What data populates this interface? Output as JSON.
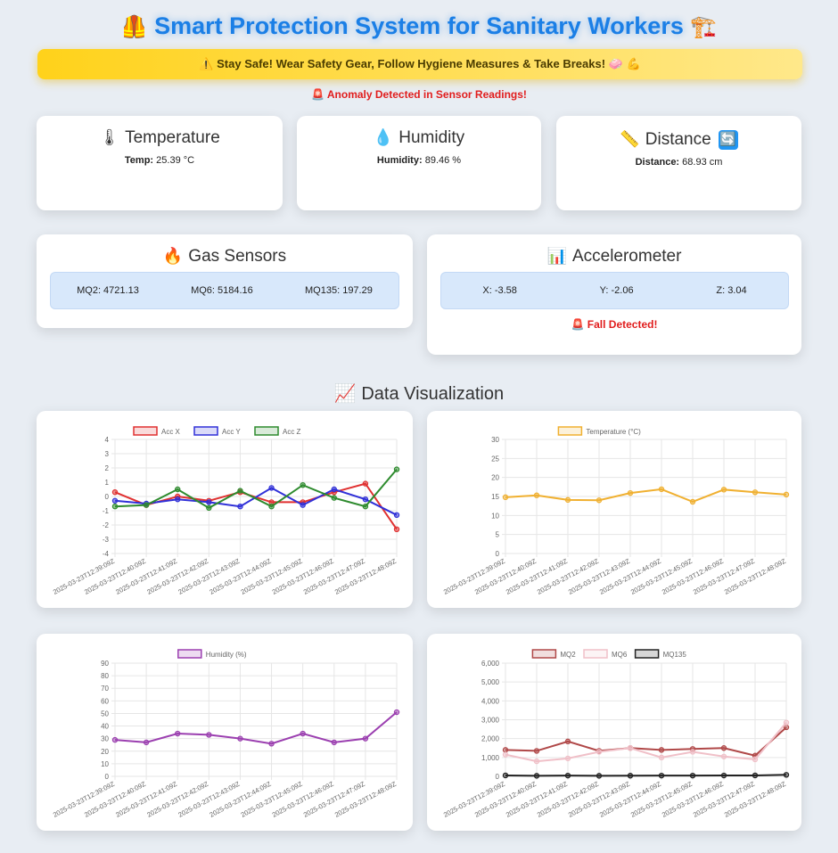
{
  "header": {
    "title": "Smart Protection System for Sanitary Workers",
    "title_left_emoji": "🦺",
    "title_right_emoji": "🏗️",
    "banner": "⚠️ Stay Safe! Wear Safety Gear, Follow Hygiene Measures & Take Breaks! 🧼 💪",
    "anomaly": "🚨 Anomaly Detected in Sensor Readings!"
  },
  "temperature": {
    "title": "Temperature",
    "icon": "🌡",
    "label": "Temp:",
    "value": "25.39 °C"
  },
  "humidity": {
    "title": "Humidity",
    "icon": "💧",
    "label": "Humidity:",
    "value": "89.46 %"
  },
  "distance": {
    "title": "Distance",
    "icon": "📏",
    "label": "Distance:",
    "value": "68.93 cm",
    "refresh_icon": "🔄"
  },
  "gas": {
    "title": "Gas Sensors",
    "icon": "🔥",
    "mq2": "MQ2: 4721.13",
    "mq6": "MQ6: 5184.16",
    "mq135": "MQ135: 197.29"
  },
  "accel": {
    "title": "Accelerometer",
    "icon": "📊",
    "x": "X: -3.58",
    "y": "Y: -2.06",
    "z": "Z: 3.04",
    "fall": "🚨 Fall Detected!"
  },
  "viz": {
    "title": "Data Visualization",
    "icon": "📈"
  },
  "colors": {
    "accent": "#1b7fe6",
    "alert": "#e11d1d",
    "banner": "#ffd21a"
  },
  "chart_data": [
    {
      "type": "line",
      "categories": [
        "2025-03-23T12:39:09Z",
        "2025-03-23T12:40:09Z",
        "2025-03-23T12:41:09Z",
        "2025-03-23T12:42:09Z",
        "2025-03-23T12:43:09Z",
        "2025-03-23T12:44:09Z",
        "2025-03-23T12:45:09Z",
        "2025-03-23T12:46:09Z",
        "2025-03-23T12:47:09Z",
        "2025-03-23T12:48:09Z"
      ],
      "series": [
        {
          "name": "Acc X",
          "color": "#e03030",
          "values": [
            0.3,
            -0.6,
            0.0,
            -0.3,
            0.3,
            -0.4,
            -0.4,
            0.3,
            0.9,
            -2.3
          ]
        },
        {
          "name": "Acc Y",
          "color": "#3030d8",
          "values": [
            -0.3,
            -0.5,
            -0.2,
            -0.4,
            -0.7,
            0.6,
            -0.6,
            0.5,
            -0.2,
            -1.3
          ]
        },
        {
          "name": "Acc Z",
          "color": "#2e8b2e",
          "values": [
            -0.7,
            -0.6,
            0.5,
            -0.8,
            0.4,
            -0.7,
            0.8,
            -0.1,
            -0.7,
            1.9
          ]
        }
      ],
      "ylim": [
        -4,
        4
      ],
      "yticks": [
        4,
        3,
        2,
        1,
        0,
        -1,
        -2,
        -3,
        -4
      ],
      "ytick_labels": [
        "4",
        "3",
        "2",
        "1",
        "0",
        "-1",
        "-2",
        "-3",
        "-4"
      ],
      "legend": "top",
      "grid": true
    },
    {
      "type": "line",
      "categories": [
        "2025-03-23T12:39:09Z",
        "2025-03-23T12:40:09Z",
        "2025-03-23T12:41:09Z",
        "2025-03-23T12:42:09Z",
        "2025-03-23T12:43:09Z",
        "2025-03-23T12:44:09Z",
        "2025-03-23T12:45:09Z",
        "2025-03-23T12:46:09Z",
        "2025-03-23T12:47:09Z",
        "2025-03-23T12:48:09Z"
      ],
      "series": [
        {
          "name": "Temperature (°C)",
          "color": "#f0b030",
          "values": [
            14.8,
            15.3,
            14.1,
            14.0,
            15.9,
            16.9,
            13.6,
            16.8,
            16.1,
            15.5
          ]
        }
      ],
      "ylim": [
        0,
        30
      ],
      "yticks": [
        30,
        25,
        20,
        15,
        10,
        5,
        0
      ],
      "ytick_labels": [
        "30",
        "25",
        "20",
        "15",
        "10",
        "5",
        "0"
      ],
      "legend": "top",
      "grid": true
    },
    {
      "type": "line",
      "categories": [
        "2025-03-23T12:39:09Z",
        "2025-03-23T12:40:09Z",
        "2025-03-23T12:41:09Z",
        "2025-03-23T12:42:09Z",
        "2025-03-23T12:43:09Z",
        "2025-03-23T12:44:09Z",
        "2025-03-23T12:45:09Z",
        "2025-03-23T12:46:09Z",
        "2025-03-23T12:47:09Z",
        "2025-03-23T12:48:09Z"
      ],
      "series": [
        {
          "name": "Humidity (%)",
          "color": "#9b3fb0",
          "values": [
            29,
            27,
            34,
            33,
            30,
            26,
            34,
            27,
            30,
            51
          ]
        }
      ],
      "ylim": [
        0,
        90
      ],
      "yticks": [
        90,
        80,
        70,
        60,
        50,
        40,
        30,
        20,
        10,
        0
      ],
      "ytick_labels": [
        "90",
        "80",
        "70",
        "60",
        "50",
        "40",
        "30",
        "20",
        "10",
        "0"
      ],
      "legend": "top",
      "grid": true
    },
    {
      "type": "line",
      "categories": [
        "2025-03-23T12:39:09Z",
        "2025-03-23T12:40:09Z",
        "2025-03-23T12:41:09Z",
        "2025-03-23T12:42:09Z",
        "2025-03-23T12:43:09Z",
        "2025-03-23T12:44:09Z",
        "2025-03-23T12:45:09Z",
        "2025-03-23T12:46:09Z",
        "2025-03-23T12:47:09Z",
        "2025-03-23T12:48:09Z"
      ],
      "series": [
        {
          "name": "MQ2",
          "color": "#b04848",
          "values": [
            1400,
            1350,
            1850,
            1350,
            1500,
            1400,
            1450,
            1500,
            1100,
            2600
          ]
        },
        {
          "name": "MQ6",
          "color": "#f0c0c8",
          "values": [
            1150,
            800,
            950,
            1300,
            1500,
            1000,
            1300,
            1050,
            900,
            2850
          ]
        },
        {
          "name": "MQ135",
          "color": "#222222",
          "values": [
            50,
            30,
            40,
            30,
            35,
            40,
            40,
            45,
            50,
            80
          ]
        }
      ],
      "ylim": [
        0,
        6000
      ],
      "yticks": [
        6000,
        5000,
        4000,
        3000,
        2000,
        1000,
        0
      ],
      "ytick_labels": [
        "6,000",
        "5,000",
        "4,000",
        "3,000",
        "2,000",
        "1,000",
        "0"
      ],
      "legend": "top",
      "grid": true
    }
  ]
}
